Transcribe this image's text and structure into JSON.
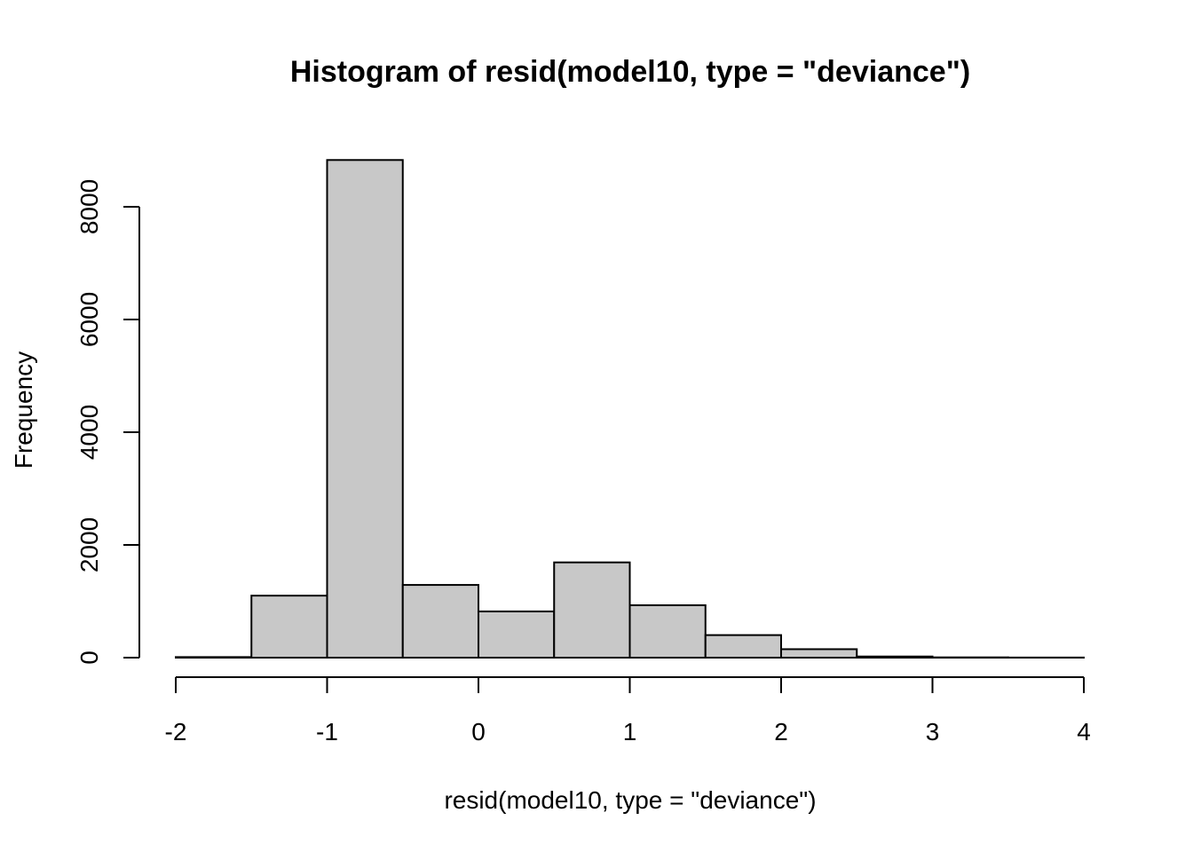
{
  "chart_data": {
    "type": "bar",
    "title": "Histogram of resid(model10, type = \"deviance\")",
    "xlabel": "resid(model10, type = \"deviance\")",
    "ylabel": "Frequency",
    "bins": [
      {
        "start": -2.0,
        "end": -1.5,
        "count": 10
      },
      {
        "start": -1.5,
        "end": -1.0,
        "count": 1100
      },
      {
        "start": -1.0,
        "end": -0.5,
        "count": 8830
      },
      {
        "start": -0.5,
        "end": 0.0,
        "count": 1290
      },
      {
        "start": 0.0,
        "end": 0.5,
        "count": 820
      },
      {
        "start": 0.5,
        "end": 1.0,
        "count": 1690
      },
      {
        "start": 1.0,
        "end": 1.5,
        "count": 930
      },
      {
        "start": 1.5,
        "end": 2.0,
        "count": 400
      },
      {
        "start": 2.0,
        "end": 2.5,
        "count": 150
      },
      {
        "start": 2.5,
        "end": 3.0,
        "count": 20
      },
      {
        "start": 3.0,
        "end": 3.5,
        "count": 5
      },
      {
        "start": 3.5,
        "end": 4.0,
        "count": 2
      }
    ],
    "x_ticks": [
      -2,
      -1,
      0,
      1,
      2,
      3,
      4
    ],
    "x_tick_labels": [
      "-2",
      "-1",
      "0",
      "1",
      "2",
      "3",
      "4"
    ],
    "y_ticks": [
      0,
      2000,
      4000,
      6000,
      8000
    ],
    "y_tick_labels": [
      "0",
      "2000",
      "4000",
      "6000",
      "8000"
    ],
    "xlim": [
      -2,
      4
    ],
    "ylim": [
      0,
      8000
    ],
    "grid": false,
    "colors": {
      "bar_fill": "#c8c8c8",
      "bar_stroke": "#000000"
    }
  }
}
